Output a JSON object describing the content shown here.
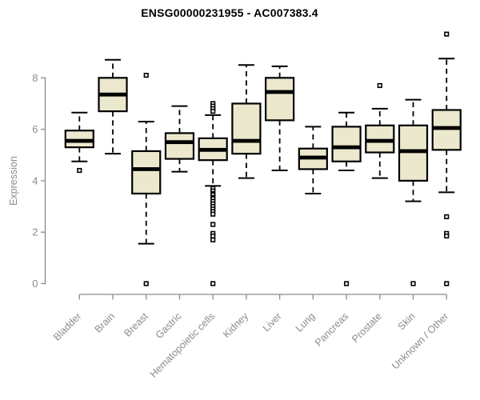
{
  "chart_data": {
    "type": "boxplot",
    "title": "ENSG00000231955 - AC007383.4",
    "ylabel": "Expression",
    "xlabel": "",
    "yticks": [
      0,
      2,
      4,
      6,
      8
    ],
    "ylim": [
      0,
      9.9
    ],
    "grid": false,
    "legend": "none",
    "categories": [
      "Bladder",
      "Brain",
      "Breast",
      "Gastric",
      "Hematopoietic cells",
      "Kidney",
      "Liver",
      "Lung",
      "Pancreas",
      "Prostate",
      "Skin",
      "Unknown / Other"
    ],
    "series": [
      {
        "name": "Bladder",
        "whisker_low": 4.75,
        "q1": 5.3,
        "median": 5.55,
        "q3": 5.95,
        "whisker_high": 6.65,
        "outliers": [
          4.4
        ]
      },
      {
        "name": "Brain",
        "whisker_low": 5.05,
        "q1": 6.7,
        "median": 7.35,
        "q3": 8.0,
        "whisker_high": 8.7,
        "outliers": []
      },
      {
        "name": "Breast",
        "whisker_low": 1.55,
        "q1": 3.5,
        "median": 4.45,
        "q3": 5.15,
        "whisker_high": 6.3,
        "outliers": [
          8.1,
          0
        ]
      },
      {
        "name": "Gastric",
        "whisker_low": 4.35,
        "q1": 4.85,
        "median": 5.5,
        "q3": 5.85,
        "whisker_high": 6.9,
        "outliers": []
      },
      {
        "name": "Hematopoietic cells",
        "whisker_low": 3.8,
        "q1": 4.8,
        "median": 5.2,
        "q3": 5.65,
        "whisker_high": 6.55,
        "outliers": [
          7.0,
          6.9,
          6.8,
          6.7,
          3.7,
          3.6,
          3.5,
          3.45,
          3.35,
          3.3,
          3.2,
          3.1,
          3.0,
          2.9,
          2.8,
          2.7,
          2.3,
          1.95,
          1.85,
          1.7,
          0
        ]
      },
      {
        "name": "Kidney",
        "whisker_low": 4.1,
        "q1": 5.05,
        "median": 5.55,
        "q3": 7.0,
        "whisker_high": 8.5,
        "outliers": []
      },
      {
        "name": "Liver",
        "whisker_low": 4.4,
        "q1": 6.35,
        "median": 7.45,
        "q3": 8.0,
        "whisker_high": 8.45,
        "outliers": []
      },
      {
        "name": "Lung",
        "whisker_low": 3.5,
        "q1": 4.45,
        "median": 4.9,
        "q3": 5.25,
        "whisker_high": 6.1,
        "outliers": []
      },
      {
        "name": "Pancreas",
        "whisker_low": 4.4,
        "q1": 4.75,
        "median": 5.3,
        "q3": 6.1,
        "whisker_high": 6.65,
        "outliers": [
          0
        ]
      },
      {
        "name": "Prostate",
        "whisker_low": 4.1,
        "q1": 5.1,
        "median": 5.55,
        "q3": 6.15,
        "whisker_high": 6.8,
        "outliers": [
          7.7
        ]
      },
      {
        "name": "Skin",
        "whisker_low": 3.2,
        "q1": 4.0,
        "median": 5.15,
        "q3": 6.15,
        "whisker_high": 7.15,
        "outliers": [
          0
        ]
      },
      {
        "name": "Unknown / Other",
        "whisker_low": 3.55,
        "q1": 5.2,
        "median": 6.05,
        "q3": 6.75,
        "whisker_high": 8.75,
        "outliers": [
          9.7,
          2.6,
          1.95,
          1.85,
          0
        ]
      }
    ],
    "colors": {
      "box_fill": "#ECE8CE",
      "box_border": "#000000",
      "median": "#000000",
      "whisker": "#000000",
      "outlier_stroke": "#000000",
      "outlier_fill": "#FFFFFF",
      "axis": "#8B8B8B",
      "tick_label": "#8B8B8B",
      "title": "#000000",
      "background": "#FFFFFF"
    }
  }
}
